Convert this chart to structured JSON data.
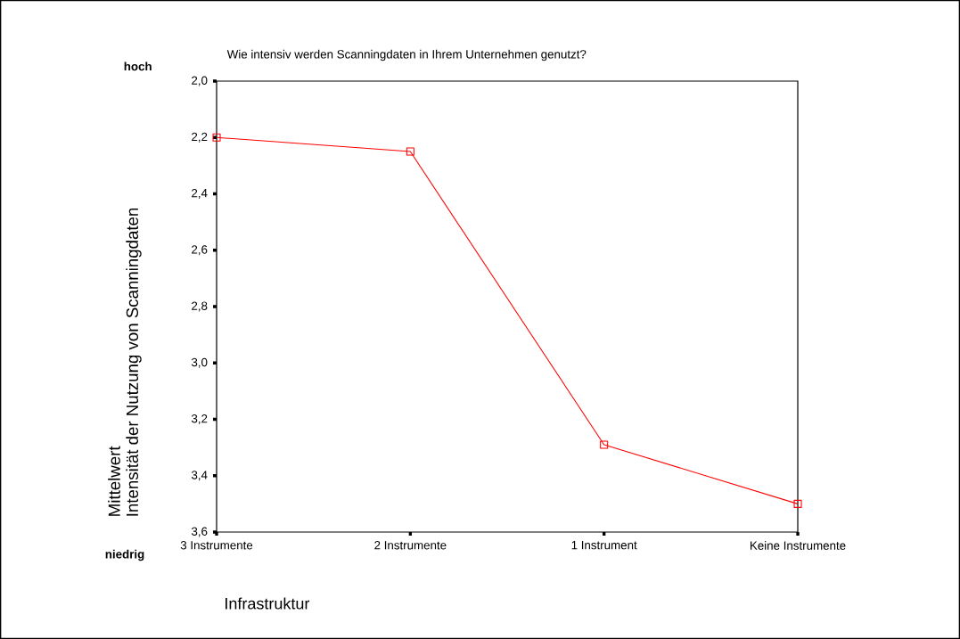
{
  "chart_data": {
    "type": "line",
    "title": "Wie intensiv werden Scanningdaten in Ihrem Unternehmen genutzt?",
    "xlabel": "Infrastruktur",
    "ylabel": "Intensität der Nutzung von Scanningdaten",
    "annotations": [
      "Mittelwert",
      "hoch",
      "niedrig"
    ],
    "categories": [
      "3 Instrumente",
      "2 Instrumente",
      "1 Instrument",
      "Keine Instrumente"
    ],
    "series": [
      {
        "color": "#ff0000",
        "values": [
          2.2,
          2.25,
          3.29,
          3.5
        ]
      }
    ],
    "ylim": [
      3.6,
      2.0
    ],
    "yticks": [
      {
        "value": 2.0,
        "label": "2,0"
      },
      {
        "value": 2.2,
        "label": "2,2"
      },
      {
        "value": 2.4,
        "label": "2,4"
      },
      {
        "value": 2.6,
        "label": "2,6"
      },
      {
        "value": 2.8,
        "label": "2,8"
      },
      {
        "value": 3.0,
        "label": "3,0"
      },
      {
        "value": 3.2,
        "label": "3,2"
      },
      {
        "value": 3.4,
        "label": "3,4"
      },
      {
        "value": 3.6,
        "label": "3,6"
      }
    ],
    "marker": "square"
  }
}
